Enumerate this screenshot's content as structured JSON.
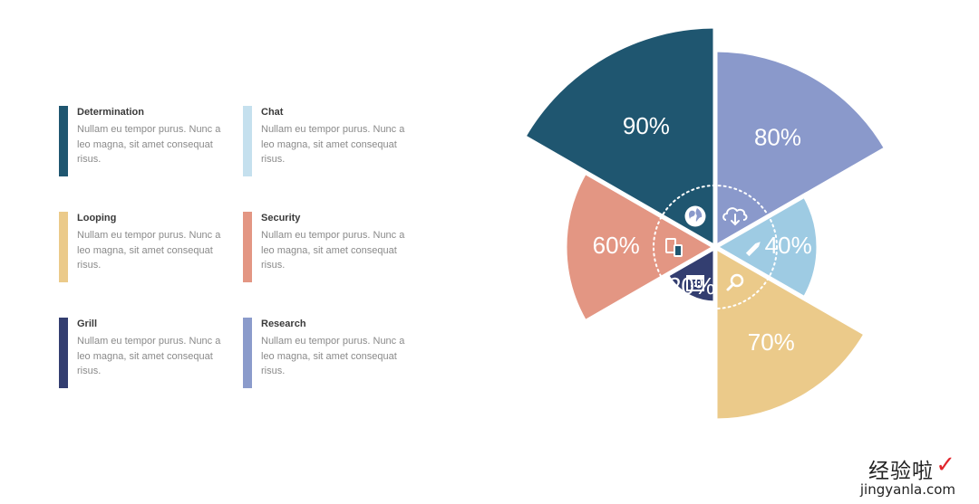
{
  "legend": [
    {
      "title": "Determination",
      "text": "Nullam eu tempor purus. Nunc a leo magna, sit amet consequat risus.",
      "color": "#1f5670"
    },
    {
      "title": "Chat",
      "text": "Nullam eu tempor purus. Nunc a leo magna, sit amet consequat risus.",
      "color": "#c5e0ee"
    },
    {
      "title": "Looping",
      "text": "Nullam eu tempor purus. Nunc a leo magna, sit amet consequat risus.",
      "color": "#ebca8a"
    },
    {
      "title": "Security",
      "text": "Nullam eu tempor purus. Nunc a leo magna, sit amet consequat risus.",
      "color": "#e39683"
    },
    {
      "title": "Grill",
      "text": "Nullam eu tempor purus. Nunc a leo magna, sit amet consequat risus.",
      "color": "#333e70"
    },
    {
      "title": "Research",
      "text": "Nullam eu tempor purus. Nunc a leo magna, sit amet consequat risus.",
      "color": "#8b9bcb"
    }
  ],
  "chart_data": {
    "type": "pie",
    "title": "",
    "slices": [
      {
        "label": "80%",
        "value": 80,
        "color": "#8a99cb",
        "icon": "globe-icon"
      },
      {
        "label": "40%",
        "value": 40,
        "color": "#9ecbe3",
        "icon": "cloud-download-icon"
      },
      {
        "label": "70%",
        "value": 70,
        "color": "#ebca8a",
        "icon": "pencil-icon"
      },
      {
        "label": "20%",
        "value": 20,
        "color": "#333e70",
        "icon": "magnifier-icon"
      },
      {
        "label": "60%",
        "value": 60,
        "color": "#e39683",
        "icon": "calendar-icon"
      },
      {
        "label": "90%",
        "value": 90,
        "color": "#1f5670",
        "icon": "devices-icon"
      }
    ]
  },
  "watermark": {
    "text_cn": "经验啦",
    "check": "✓",
    "text_en": "jingyanla.com"
  }
}
